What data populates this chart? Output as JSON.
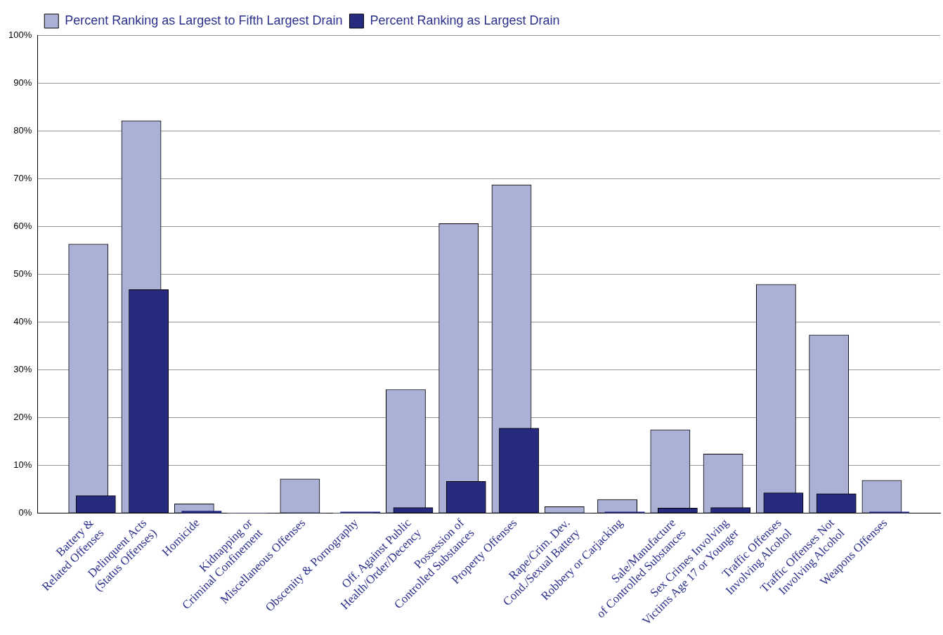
{
  "chart_data": {
    "type": "bar",
    "categories": [
      "Battery &\nRelated Offenses",
      "Delinquent Acts\n(Status Offenses)",
      "Homicide",
      "Kidnapping or\nCriminal Confinement",
      "Miscellaneous Offenses",
      "Obscenity & Pornography",
      "Off. Against Public\nHealth/Order/Decency",
      "Possession of\nControlled Substances",
      "Property Offenses",
      "Rape/Crim. Dev.\nCond./Sexual Battery",
      "Robbery or Carjacking",
      "Sale/Manufacture\nof Controlled Substances",
      "Sex Crimes Involving\nVictims Age 17 or Younger",
      "Traffic Offenses\nInvolving Alcohol",
      "Traffic Offenses Not\nInvolving Alcohol",
      "Weapons Offenses"
    ],
    "series": [
      {
        "name": "Percent Ranking as Largest to Fifth Largest Drain",
        "color": "#aab0d6",
        "values": [
          56.3,
          82.1,
          2.0,
          0,
          7.2,
          0,
          25.9,
          60.6,
          68.7,
          1.4,
          2.9,
          17.5,
          12.4,
          47.9,
          37.3,
          6.9
        ]
      },
      {
        "name": "Percent Ranking as Largest Drain",
        "color": "#262b80",
        "values": [
          3.7,
          46.8,
          0.5,
          0,
          0,
          0.3,
          1.2,
          6.7,
          17.8,
          0,
          0.3,
          1.1,
          1.2,
          4.3,
          4.1,
          0.3
        ]
      }
    ],
    "ylim": [
      0,
      100
    ],
    "yticks": [
      {
        "value": 0,
        "label": "0%"
      },
      {
        "value": 10,
        "label": "10%"
      },
      {
        "value": 20,
        "label": "20%"
      },
      {
        "value": 30,
        "label": "30%"
      },
      {
        "value": 40,
        "label": "40%"
      },
      {
        "value": 50,
        "label": "50%"
      },
      {
        "value": 60,
        "label": "60%"
      },
      {
        "value": 70,
        "label": "70%"
      },
      {
        "value": 80,
        "label": "80%"
      },
      {
        "value": 90,
        "label": "90%"
      },
      {
        "value": 100,
        "label": "100%"
      }
    ],
    "grid": "y",
    "legend": "top left"
  }
}
